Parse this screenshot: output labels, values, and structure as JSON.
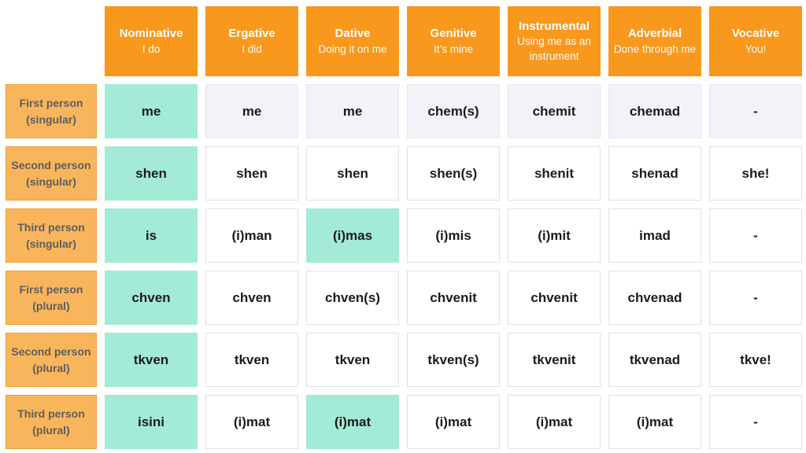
{
  "colors": {
    "header_orange": "#F8981D",
    "row_header_orange": "#F9B55C",
    "highlight_teal": "#A3EBD6",
    "first_row_gray": "#F1F3F8",
    "cell_text": "#1B1B1B",
    "header_text": "#FFFFFF",
    "row_header_text": "#5E5E5E"
  },
  "chart_data": {
    "type": "table",
    "columns": [
      {
        "name": "Nominative",
        "subtitle": "I do"
      },
      {
        "name": "Ergative",
        "subtitle": "I did"
      },
      {
        "name": "Dative",
        "subtitle": "Doing it on me"
      },
      {
        "name": "Genitive",
        "subtitle": "It’s mine"
      },
      {
        "name": "Instrumental",
        "subtitle": "Using me as an instrument"
      },
      {
        "name": "Adverbial",
        "subtitle": "Done through me"
      },
      {
        "name": "Vocative",
        "subtitle": "You!"
      }
    ],
    "rows": [
      {
        "label": "First person (singular)",
        "cells": [
          {
            "text": "me",
            "style": "teal"
          },
          {
            "text": "me",
            "style": "gray"
          },
          {
            "text": "me",
            "style": "gray"
          },
          {
            "text": "chem(s)",
            "style": "gray"
          },
          {
            "text": "chemit",
            "style": "gray"
          },
          {
            "text": "chemad",
            "style": "gray"
          },
          {
            "text": "-",
            "style": "gray"
          }
        ]
      },
      {
        "label": "Second person (singular)",
        "cells": [
          {
            "text": "shen",
            "style": "teal"
          },
          {
            "text": "shen",
            "style": "white"
          },
          {
            "text": "shen",
            "style": "white"
          },
          {
            "text": "shen(s)",
            "style": "white"
          },
          {
            "text": "shenit",
            "style": "white"
          },
          {
            "text": "shenad",
            "style": "white"
          },
          {
            "text": "she!",
            "style": "white"
          }
        ]
      },
      {
        "label": "Third person (singular)",
        "cells": [
          {
            "text": "is",
            "style": "teal"
          },
          {
            "text": "(i)man",
            "style": "white"
          },
          {
            "text": "(i)mas",
            "style": "teal"
          },
          {
            "text": "(i)mis",
            "style": "white"
          },
          {
            "text": "(i)mit",
            "style": "white"
          },
          {
            "text": "imad",
            "style": "white"
          },
          {
            "text": "-",
            "style": "white"
          }
        ]
      },
      {
        "label": "First person (plural)",
        "cells": [
          {
            "text": "chven",
            "style": "teal"
          },
          {
            "text": "chven",
            "style": "white"
          },
          {
            "text": "chven(s)",
            "style": "white"
          },
          {
            "text": "chvenit",
            "style": "white"
          },
          {
            "text": "chvenit",
            "style": "white"
          },
          {
            "text": "chvenad",
            "style": "white"
          },
          {
            "text": "-",
            "style": "white"
          }
        ]
      },
      {
        "label": "Second person (plural)",
        "cells": [
          {
            "text": "tkven",
            "style": "teal"
          },
          {
            "text": "tkven",
            "style": "white"
          },
          {
            "text": "tkven",
            "style": "white"
          },
          {
            "text": "tkven(s)",
            "style": "white"
          },
          {
            "text": "tkvenit",
            "style": "white"
          },
          {
            "text": "tkvenad",
            "style": "white"
          },
          {
            "text": "tkve!",
            "style": "white"
          }
        ]
      },
      {
        "label": "Third person (plural)",
        "cells": [
          {
            "text": "isini",
            "style": "teal"
          },
          {
            "text": "(i)mat",
            "style": "white"
          },
          {
            "text": "(i)mat",
            "style": "teal"
          },
          {
            "text": "(i)mat",
            "style": "white"
          },
          {
            "text": "(i)mat",
            "style": "white"
          },
          {
            "text": "(i)mat",
            "style": "white"
          },
          {
            "text": "-",
            "style": "white"
          }
        ]
      }
    ]
  }
}
